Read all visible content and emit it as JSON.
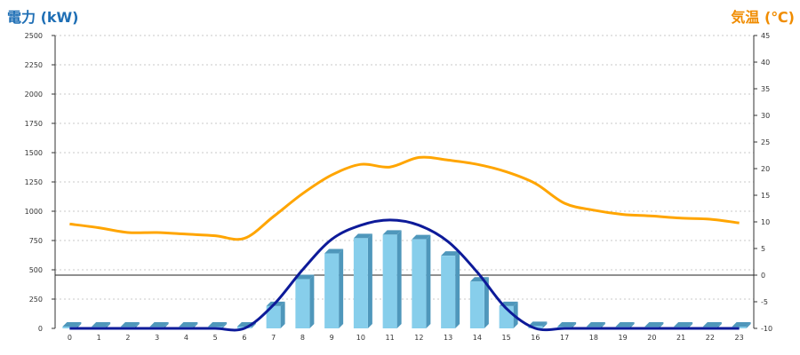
{
  "colors": {
    "power_axis": "#1f6fb5",
    "temp_axis": "#f08c00",
    "bar": "#87ceeb",
    "bar_dark": "#4f97bb",
    "curve": "#0d1a99",
    "temp_line": "#ffa500",
    "grid": "#c8c8c8"
  },
  "chart_data": {
    "type": "bar",
    "ylabel_left": "電力 (kW)",
    "ylabel_right": "気温 (℃)",
    "x_categories": [
      "0",
      "1",
      "2",
      "3",
      "4",
      "5",
      "6",
      "7",
      "8",
      "9",
      "10",
      "11",
      "12",
      "13",
      "14",
      "15",
      "16",
      "17",
      "18",
      "19",
      "20",
      "21",
      "22",
      "23"
    ],
    "y_left": {
      "min": 0,
      "max": 2500,
      "ticks": [
        0,
        250,
        500,
        750,
        1000,
        1250,
        1500,
        1750,
        2000,
        2250,
        2500
      ]
    },
    "y_right": {
      "min": -10,
      "max": 45,
      "ticks": [
        -10,
        -5,
        0,
        5,
        10,
        15,
        20,
        25,
        30,
        35,
        40,
        45
      ]
    },
    "grid": true,
    "series": [
      {
        "kind": "bar",
        "axis": "left",
        "values": [
          0,
          0,
          0,
          0,
          0,
          0,
          10,
          190,
          420,
          640,
          770,
          800,
          760,
          620,
          400,
          190,
          20,
          0,
          0,
          0,
          0,
          0,
          0,
          0
        ]
      },
      {
        "kind": "line",
        "axis": "left",
        "values": [
          0,
          0,
          0,
          0,
          0,
          0,
          0,
          200,
          500,
          760,
          880,
          925,
          880,
          740,
          480,
          170,
          0,
          0,
          0,
          0,
          0,
          0,
          0,
          0
        ]
      },
      {
        "kind": "line",
        "axis": "right",
        "values": [
          9.6,
          8.9,
          8.0,
          8.0,
          7.7,
          7.4,
          6.9,
          11.0,
          15.3,
          18.8,
          20.8,
          20.3,
          22.1,
          21.6,
          20.8,
          19.4,
          17.2,
          13.5,
          12.2,
          11.4,
          11.1,
          10.7,
          10.5,
          9.8
        ]
      }
    ]
  }
}
